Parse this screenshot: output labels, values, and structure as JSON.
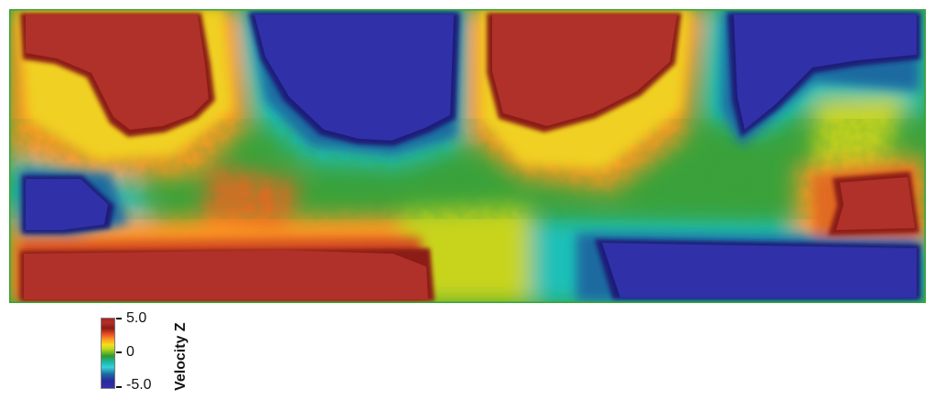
{
  "legend": {
    "title": "Velocity Z",
    "max_label": "5.0",
    "mid_label": "0",
    "min_label": "-5.0"
  },
  "colors": {
    "high": "#b22222",
    "dark_red": "#8b1b14",
    "orange": "#ff9a22",
    "yellow": "#f2e01e",
    "green": "#2e9a2e",
    "cyan": "#1cbcb6",
    "low": "#3030a8",
    "background": "#ffffff"
  }
}
